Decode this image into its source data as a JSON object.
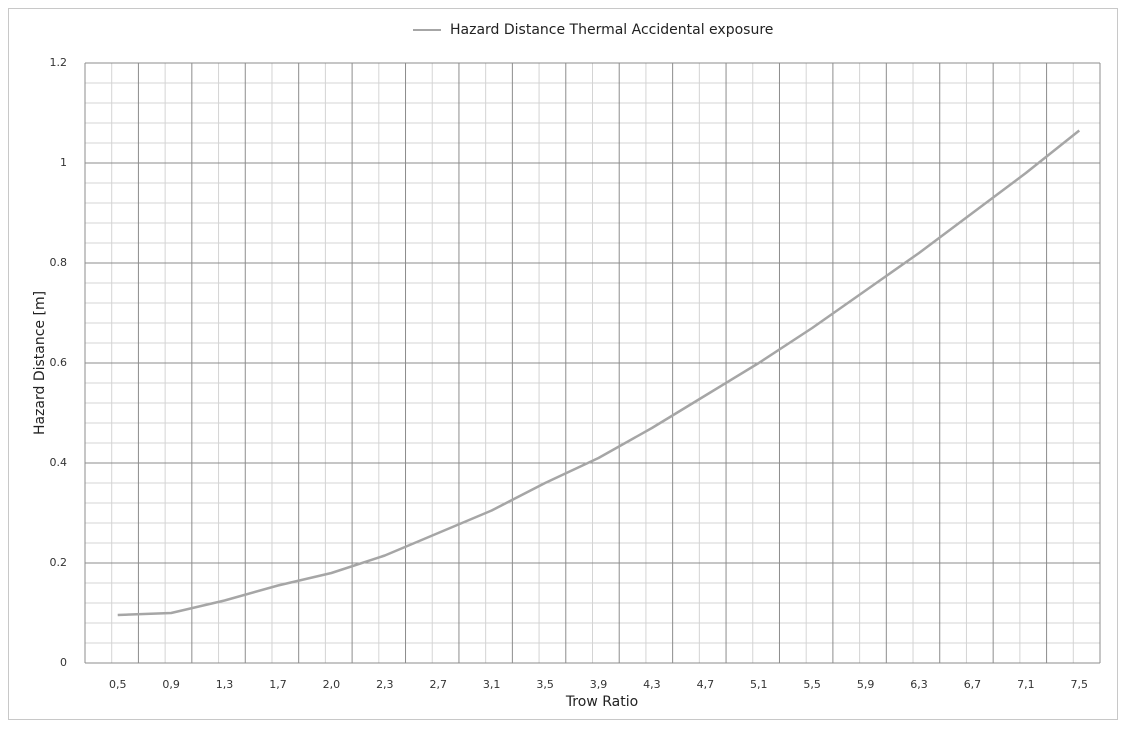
{
  "chart_data": {
    "type": "line",
    "series": [
      {
        "name": "Hazard Distance Thermal Accidental exposure",
        "color": "#a6a6a6",
        "values": [
          0.096,
          0.1,
          0.125,
          0.155,
          0.18,
          0.215,
          0.26,
          0.305,
          0.36,
          0.41,
          0.47,
          0.535,
          0.6,
          0.67,
          0.745,
          0.82,
          0.9,
          0.98,
          1.065
        ]
      }
    ],
    "categories": [
      "0,5",
      "0,9",
      "1,3",
      "1,7",
      "2,0",
      "2,3",
      "2,7",
      "3,1",
      "3,5",
      "3,9",
      "4,3",
      "4,7",
      "5,1",
      "5,5",
      "5,9",
      "6,3",
      "6,7",
      "7,1",
      "7,5"
    ],
    "x_label": "Trow Ratio",
    "y_label": "Hazard Distance [m]",
    "ylim": [
      0,
      1.2
    ],
    "yticks": [
      0,
      0.2,
      0.4,
      0.6,
      0.8,
      1,
      1.2
    ],
    "grid": true,
    "legend": "top"
  }
}
